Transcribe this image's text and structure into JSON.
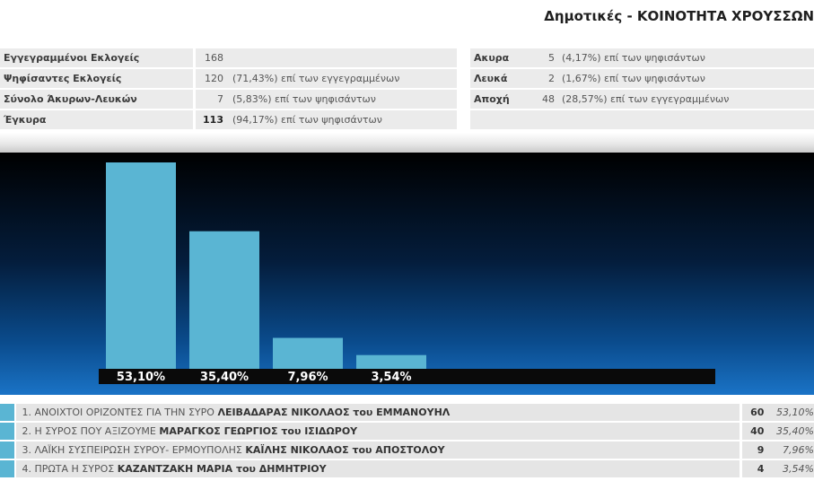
{
  "header": {
    "title": "Δημοτικές - ΚΟΙΝΟΤΗΤΑ ΧΡΟΥΣΣΩΝ"
  },
  "stats": {
    "left": [
      {
        "label": "Εγγεγραμμένοι Εκλογείς",
        "value": "168",
        "desc": ""
      },
      {
        "label": "Ψηφίσαντες Εκλογείς",
        "value": "120",
        "desc": "(71,43%) επί των εγγεγραμμένων"
      },
      {
        "label": "Σύνολο Άκυρων-Λευκών",
        "value": "7",
        "desc": "(5,83%) επί των ψηφισάντων"
      },
      {
        "label": "Έγκυρα",
        "value": "113",
        "desc": "(94,17%) επί των ψηφισάντων"
      }
    ],
    "right": [
      {
        "label": "Ακυρα",
        "value": "5",
        "desc": "(4,17%) επί των ψηφισάντων"
      },
      {
        "label": "Λευκά",
        "value": "2",
        "desc": "(1,67%) επί των ψηφισάντων"
      },
      {
        "label": "Αποχή",
        "value": "48",
        "desc": "(28,57%) επί των εγγεγραμμένων"
      }
    ]
  },
  "chart_data": {
    "type": "bar",
    "categories": [
      "1",
      "2",
      "3",
      "4"
    ],
    "values": [
      53.1,
      35.4,
      7.96,
      3.54
    ],
    "data_labels": [
      "53,10%",
      "35,40%",
      "7,96%",
      "3,54%"
    ],
    "ylim": [
      0,
      53.1
    ],
    "bar_color": "#5ab5d3",
    "background": "gradient black to blue",
    "grid": false,
    "legend": "none"
  },
  "results": [
    {
      "num": "1.",
      "party": "ΑΝΟΙΧΤΟΙ ΟΡΙΖΟΝΤΕΣ ΓΙΑ ΤΗΝ ΣΥΡΟ",
      "candidate": "ΛΕΙΒΑΔΑΡΑΣ ΝΙΚΟΛΑΟΣ του ΕΜΜΑΝΟΥΗΛ",
      "votes": "60",
      "pct": "53,10%"
    },
    {
      "num": "2.",
      "party": "Η ΣΥΡΟΣ ΠΟΥ ΑΞΙΖΟΥΜΕ",
      "candidate": "ΜΑΡΑΓΚΟΣ ΓΕΩΡΓΙΟΣ του ΙΣΙΔΩΡΟΥ",
      "votes": "40",
      "pct": "35,40%"
    },
    {
      "num": "3.",
      "party": "ΛΑΪΚΗ ΣΥΣΠΕΙΡΩΣΗ ΣΥΡΟΥ- ΕΡΜΟΥΠΟΛΗΣ",
      "candidate": "ΚΑΪΛΗΣ ΝΙΚΟΛΑΟΣ του ΑΠΟΣΤΟΛΟΥ",
      "votes": "9",
      "pct": "7,96%"
    },
    {
      "num": "4.",
      "party": "ΠΡΩΤΑ Η ΣΥΡΟΣ",
      "candidate": "ΚΑΖΑΝΤΖΑΚΗ ΜΑΡΙΑ του ΔΗΜΗΤΡΙΟΥ",
      "votes": "4",
      "pct": "3,54%"
    }
  ]
}
